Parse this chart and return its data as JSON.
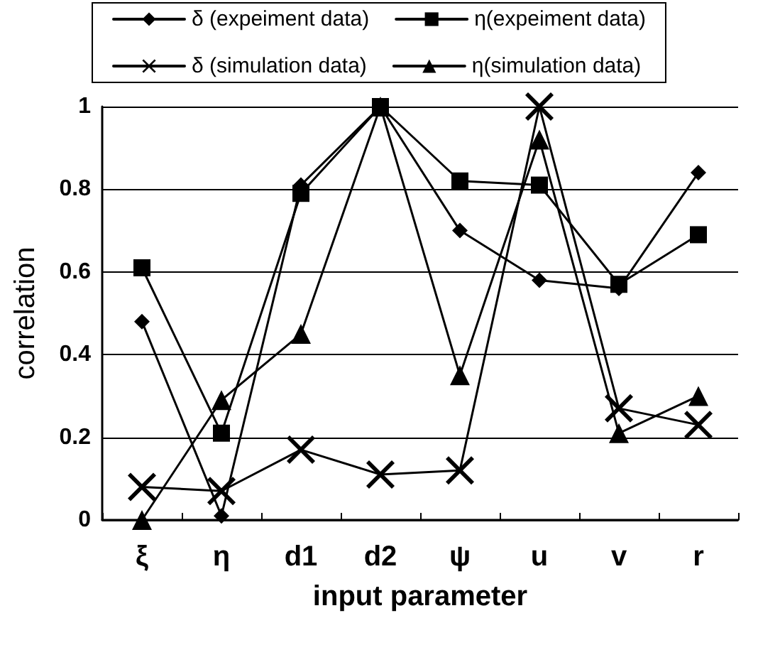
{
  "chart_data": {
    "type": "line",
    "xlabel": "input parameter",
    "ylabel": "correlation",
    "categories": [
      "ξ",
      "η",
      "d1",
      "d2",
      "ψ",
      "u",
      "v",
      "r"
    ],
    "series": [
      {
        "name": "δ (expeiment data)",
        "color": "#000000",
        "marker": "diamond",
        "values": [
          0.48,
          0.01,
          0.81,
          1.0,
          0.7,
          0.58,
          0.56,
          0.84
        ]
      },
      {
        "name": "η(expeiment data)",
        "color": "#000000",
        "marker": "square",
        "values": [
          0.61,
          0.21,
          0.79,
          1.0,
          0.82,
          0.81,
          0.57,
          0.69
        ]
      },
      {
        "name": "δ (simulation data)",
        "color": "#000000",
        "marker": "cross",
        "values": [
          0.08,
          0.07,
          0.17,
          0.11,
          0.12,
          1.0,
          0.27,
          0.23
        ]
      },
      {
        "name": "η(simulation data)",
        "color": "#000000",
        "marker": "triangle",
        "values": [
          0.0,
          0.29,
          0.45,
          1.0,
          0.35,
          0.92,
          0.21,
          0.3
        ]
      }
    ],
    "ylim": [
      0,
      1
    ],
    "yticks": [
      0,
      0.2,
      0.4,
      0.6,
      0.8,
      1
    ],
    "grid": "y",
    "legend": "top",
    "line_style": "solid"
  }
}
